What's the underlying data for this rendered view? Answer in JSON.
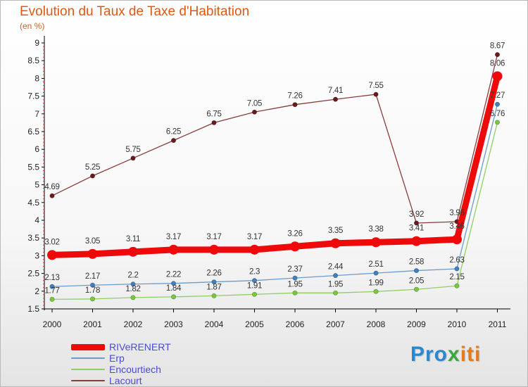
{
  "chart_data": {
    "type": "line",
    "title": "Evolution du Taux de Taxe d'Habitation",
    "unit_label": "(en %)",
    "categories": [
      "2000",
      "2001",
      "2002",
      "2003",
      "2004",
      "2005",
      "2006",
      "2007",
      "2008",
      "2009",
      "2010",
      "2011"
    ],
    "y_ticks": [
      "1.5",
      "2",
      "2.5",
      "3",
      "3.5",
      "4",
      "4.5",
      "5",
      "5.5",
      "6",
      "6.5",
      "7",
      "7.5",
      "8",
      "8.5",
      "9"
    ],
    "ylim": [
      1.5,
      9
    ],
    "grid": false,
    "legend_position": "bottom-left",
    "series": [
      {
        "name": "RIVeRENERT",
        "color": "#ee0a0a",
        "marker": "#ee0a0a",
        "width": 9,
        "marker_r": 7,
        "values": [
          3.02,
          3.05,
          3.11,
          3.17,
          3.17,
          3.17,
          3.26,
          3.35,
          3.38,
          3.41,
          3.46,
          8.06
        ],
        "labels": [
          "3.02",
          "3.05",
          "3.11",
          "3.17",
          "3.17",
          "3.17",
          "3.26",
          "3.35",
          "3.38",
          "3.41",
          "3.46",
          "8.06"
        ]
      },
      {
        "name": "Erp",
        "color": "#6a9ccc",
        "marker": "#3f7fc2",
        "width": 1.3,
        "marker_r": 3.2,
        "values": [
          2.13,
          2.17,
          2.2,
          2.22,
          2.26,
          2.3,
          2.37,
          2.44,
          2.51,
          2.58,
          2.63,
          7.27
        ],
        "labels": [
          "2.13",
          "2.17",
          "2.2",
          "2.22",
          "2.26",
          "2.3",
          "2.37",
          "2.44",
          "2.51",
          "2.58",
          "2.63",
          "7.27"
        ]
      },
      {
        "name": "Encourtiech",
        "color": "#8ed060",
        "marker": "#78c83c",
        "width": 1.3,
        "marker_r": 3.2,
        "values": [
          1.77,
          1.78,
          1.82,
          1.84,
          1.87,
          1.91,
          1.95,
          1.95,
          1.99,
          2.05,
          2.15,
          6.76
        ],
        "labels": [
          "1.77",
          "1.78",
          "1.82",
          "1.84",
          "1.87",
          "1.91",
          "1.95",
          "1.95",
          "1.99",
          "2.05",
          "2.15",
          "6.76"
        ]
      },
      {
        "name": "Lacourt",
        "color": "#8a3c3c",
        "marker": "#6a1a1a",
        "width": 1.3,
        "marker_r": 3.2,
        "values": [
          4.69,
          5.25,
          5.75,
          6.25,
          6.75,
          7.05,
          7.26,
          7.41,
          7.55,
          3.92,
          3.96,
          8.67
        ],
        "labels": [
          "4.69",
          "5.25",
          "5.75",
          "6.25",
          "6.75",
          "7.05",
          "7.26",
          "7.41",
          "7.55",
          "3.92",
          "3.96",
          "8.67"
        ]
      }
    ]
  },
  "brand": {
    "text": "Proxiti"
  }
}
